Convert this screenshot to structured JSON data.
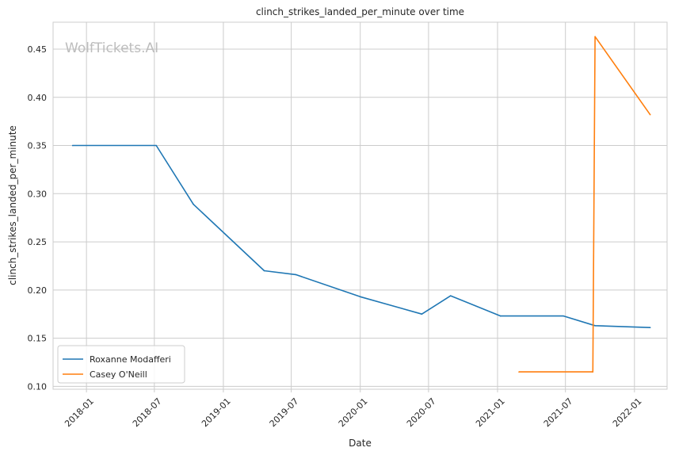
{
  "watermark": "WolfTickets.AI",
  "chart_data": {
    "type": "line",
    "title": "clinch_strikes_landed_per_minute over time",
    "xlabel": "Date",
    "ylabel": "clinch_strikes_landed_per_minute",
    "x_range": [
      "2017-10-04",
      "2022-03-29"
    ],
    "ylim": [
      0.097,
      0.478
    ],
    "x_ticks": [
      {
        "date": "2018-01-01",
        "label": "2018-01"
      },
      {
        "date": "2018-07-01",
        "label": "2018-07"
      },
      {
        "date": "2019-01-01",
        "label": "2019-01"
      },
      {
        "date": "2019-07-01",
        "label": "2019-07"
      },
      {
        "date": "2020-01-01",
        "label": "2020-01"
      },
      {
        "date": "2020-07-01",
        "label": "2020-07"
      },
      {
        "date": "2021-01-01",
        "label": "2021-01"
      },
      {
        "date": "2021-07-01",
        "label": "2021-07"
      },
      {
        "date": "2022-01-01",
        "label": "2022-01"
      }
    ],
    "y_ticks": [
      {
        "value": 0.1,
        "label": "0.10"
      },
      {
        "value": 0.15,
        "label": "0.15"
      },
      {
        "value": 0.2,
        "label": "0.20"
      },
      {
        "value": 0.25,
        "label": "0.25"
      },
      {
        "value": 0.3,
        "label": "0.30"
      },
      {
        "value": 0.35,
        "label": "0.35"
      },
      {
        "value": 0.4,
        "label": "0.40"
      },
      {
        "value": 0.45,
        "label": "0.45"
      }
    ],
    "grid": true,
    "legend_position": "lower-left",
    "series": [
      {
        "name": "Roxanne Modafferi",
        "color": "#1f77b4",
        "points": [
          {
            "x": "2017-11-25",
            "y": 0.35
          },
          {
            "x": "2018-07-06",
            "y": 0.35
          },
          {
            "x": "2018-10-13",
            "y": 0.289
          },
          {
            "x": "2019-04-20",
            "y": 0.22
          },
          {
            "x": "2019-07-13",
            "y": 0.216
          },
          {
            "x": "2020-01-01",
            "y": 0.193
          },
          {
            "x": "2020-06-13",
            "y": 0.175
          },
          {
            "x": "2020-08-29",
            "y": 0.194
          },
          {
            "x": "2021-01-09",
            "y": 0.173
          },
          {
            "x": "2021-06-26",
            "y": 0.173
          },
          {
            "x": "2021-09-18",
            "y": 0.163
          },
          {
            "x": "2022-02-12",
            "y": 0.161
          }
        ]
      },
      {
        "name": "Casey O'Neill",
        "color": "#ff7f0e",
        "points": [
          {
            "x": "2021-02-27",
            "y": 0.115
          },
          {
            "x": "2021-09-12",
            "y": 0.115
          },
          {
            "x": "2021-09-18",
            "y": 0.463
          },
          {
            "x": "2022-02-12",
            "y": 0.382
          }
        ]
      }
    ]
  }
}
